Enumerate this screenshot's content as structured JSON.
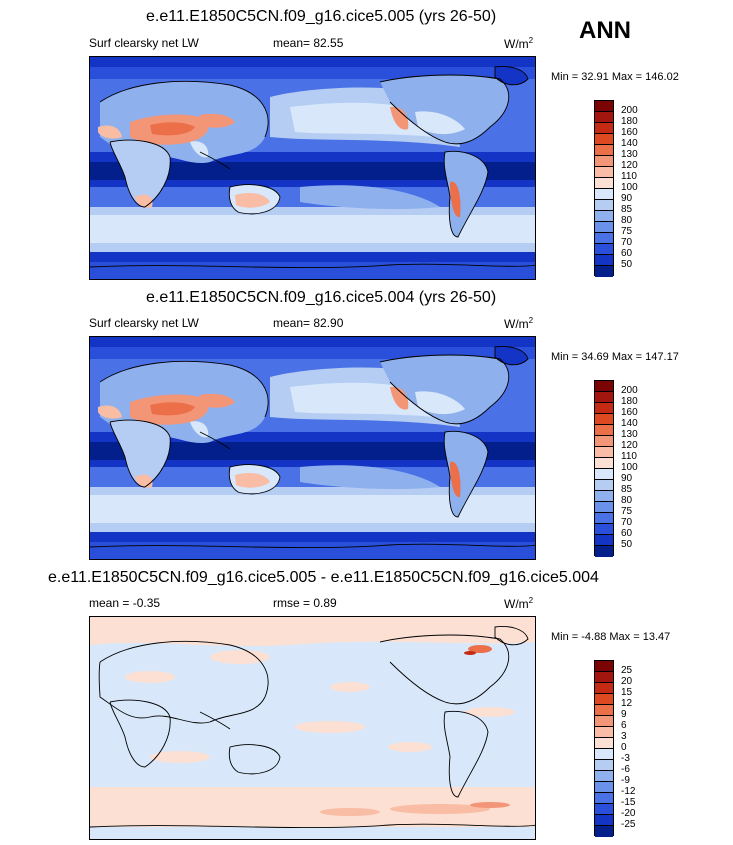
{
  "season": "ANN",
  "panels": [
    {
      "title": "e.e11.E1850C5CN.f09_g16.cice5.005 (yrs 26-50)",
      "variable": "Surf clearsky net LW",
      "stat": "mean=  82.55",
      "units": "W/m",
      "units_sup": "2",
      "minmax": "Min =  32.91 Max = 146.02",
      "kind": "abs"
    },
    {
      "title": "e.e11.E1850C5CN.f09_g16.cice5.004 (yrs 26-50)",
      "variable": "Surf clearsky net LW",
      "stat": "mean=  82.90",
      "units": "W/m",
      "units_sup": "2",
      "minmax": "Min =  34.69 Max = 147.17",
      "kind": "abs"
    },
    {
      "title": "e.e11.E1850C5CN.f09_g16.cice5.005 - e.e11.E1850C5CN.f09_g16.cice5.004",
      "variable": "mean =  -0.35",
      "stat": "rmse =   0.89",
      "units": "W/m",
      "units_sup": "2",
      "minmax": "Min =  -4.88 Max =  13.47",
      "kind": "diff"
    }
  ],
  "abs_scale": {
    "labels": [
      "200",
      "180",
      "160",
      "140",
      "130",
      "120",
      "110",
      "100",
      "90",
      "85",
      "80",
      "75",
      "70",
      "60",
      "50"
    ],
    "colors": [
      "#7a0403",
      "#a3150f",
      "#c42a14",
      "#dd4a22",
      "#eb7049",
      "#f39677",
      "#f9bca5",
      "#fbe0d3",
      "#d8e8fa",
      "#b5cdf3",
      "#8eb1ee",
      "#6a92ea",
      "#4a71e6",
      "#2a50db",
      "#1334c4",
      "#031f8c"
    ]
  },
  "diff_scale": {
    "labels": [
      "25",
      "20",
      "15",
      "12",
      "9",
      "6",
      "3",
      "0",
      "-3",
      "-6",
      "-9",
      "-12",
      "-15",
      "-20",
      "-25"
    ],
    "colors": [
      "#7a0403",
      "#a3150f",
      "#c42a14",
      "#dd4a22",
      "#eb7049",
      "#f39677",
      "#f9bca5",
      "#fbe0d3",
      "#d8e8fa",
      "#b5cdf3",
      "#8eb1ee",
      "#6a92ea",
      "#4a71e6",
      "#2a50db",
      "#1334c4",
      "#031f8c"
    ]
  }
}
